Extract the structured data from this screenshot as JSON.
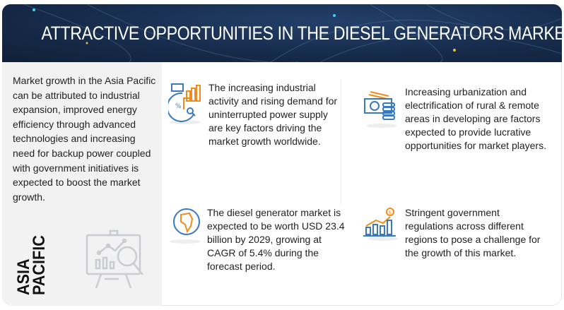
{
  "header": {
    "title": "ATTRACTIVE OPPORTUNITIES IN THE DIESEL GENERATORS MARKET"
  },
  "left_panel": {
    "description": "Market growth in the Asia Pacific can be attributed to industrial expansion, improved energy efficiency through advanced technologies and increasing need for backup power coupled with government initiatives is expected to boost the market growth.",
    "region_line1": "ASIA",
    "region_line2": "PACIFIC",
    "icon": "presentation-chart-magnifier-icon"
  },
  "points": [
    {
      "icon": "industrial-analytics-icon",
      "text": "The increasing industrial activity and rising demand for uninterrupted power supply are key factors driving the market growth worldwide."
    },
    {
      "icon": "money-coins-icon",
      "text": "Increasing urbanization and electrification of rural & remote areas in developing are factors expected to provide lucrative opportunities for market players."
    },
    {
      "icon": "globe-africa-icon",
      "text": "The diesel generator market is expected to be worth USD 23.4 billion by 2029, growing at CAGR of 5.4% during the forecast period."
    },
    {
      "icon": "bar-chart-dollar-icon",
      "text": "Stringent government regulations across different regions to pose a challenge for the growth of this market."
    }
  ],
  "colors": {
    "header": "#172c4c",
    "accent_orange": "#f08c1e",
    "accent_blue": "#3a78c2",
    "panel": "#f2f2f2"
  }
}
